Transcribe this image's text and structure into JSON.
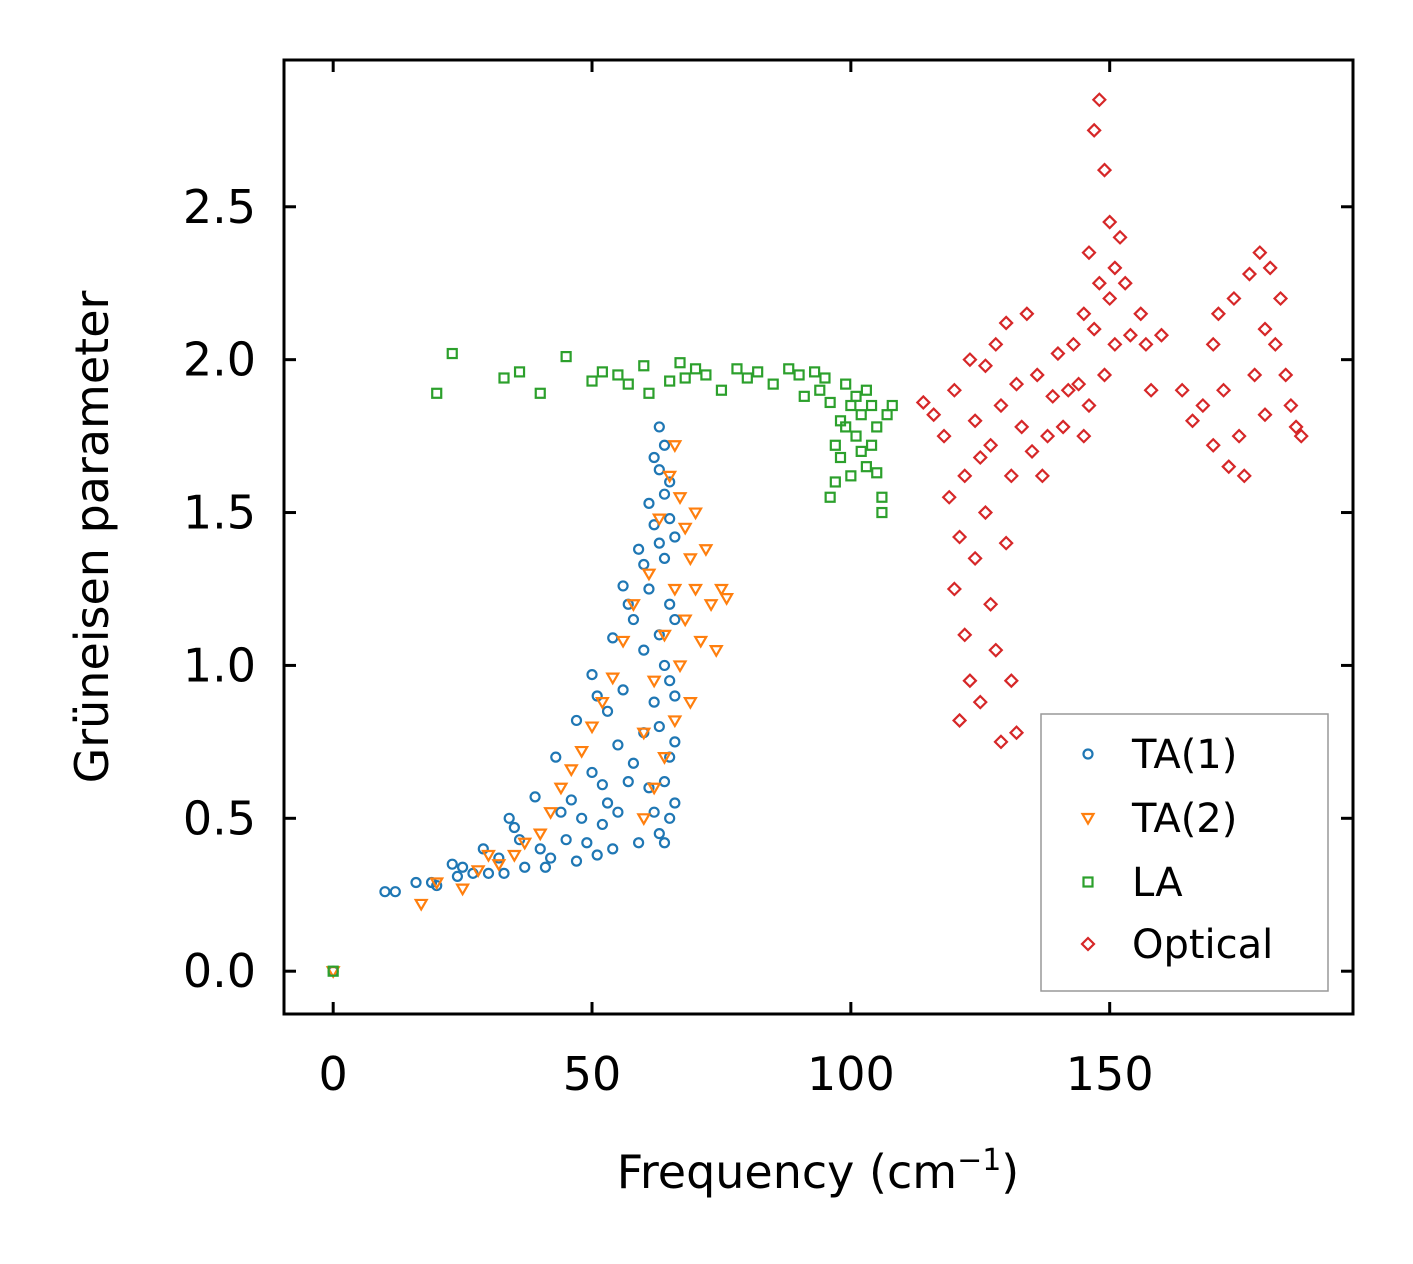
{
  "chart_data": {
    "type": "scatter",
    "title": "",
    "xlabel": "Frequency (cm",
    "xlabel_sup": "−1",
    "xlabel_close": ")",
    "ylabel": "Grüneisen parameter",
    "xlim": [
      -9.5,
      197
    ],
    "ylim": [
      -0.14,
      2.98
    ],
    "xticks": [
      0,
      50,
      100,
      150
    ],
    "xtick_labels": [
      "0",
      "50",
      "100",
      "150"
    ],
    "yticks": [
      0.0,
      0.5,
      1.0,
      1.5,
      2.0,
      2.5
    ],
    "ytick_labels": [
      "0.0",
      "0.5",
      "1.0",
      "1.5",
      "2.0",
      "2.5"
    ],
    "grid": false,
    "legend_position": "lower-right",
    "series": [
      {
        "name": "TA(1)",
        "marker": "circle",
        "color": "#1f77b4",
        "points": [
          [
            0,
            0
          ],
          [
            10,
            0.26
          ],
          [
            12,
            0.26
          ],
          [
            16,
            0.29
          ],
          [
            19,
            0.29
          ],
          [
            20,
            0.28
          ],
          [
            23,
            0.35
          ],
          [
            24,
            0.31
          ],
          [
            25,
            0.34
          ],
          [
            27,
            0.32
          ],
          [
            29,
            0.4
          ],
          [
            30,
            0.32
          ],
          [
            32,
            0.37
          ],
          [
            33,
            0.32
          ],
          [
            34,
            0.5
          ],
          [
            35,
            0.47
          ],
          [
            36,
            0.43
          ],
          [
            37,
            0.34
          ],
          [
            39,
            0.57
          ],
          [
            40,
            0.4
          ],
          [
            41,
            0.34
          ],
          [
            42,
            0.37
          ],
          [
            43,
            0.7
          ],
          [
            44,
            0.52
          ],
          [
            45,
            0.43
          ],
          [
            46,
            0.56
          ],
          [
            47,
            0.82
          ],
          [
            47,
            0.36
          ],
          [
            48,
            0.5
          ],
          [
            49,
            0.42
          ],
          [
            50,
            0.97
          ],
          [
            50,
            0.65
          ],
          [
            51,
            0.9
          ],
          [
            51,
            0.38
          ],
          [
            52,
            0.61
          ],
          [
            52,
            0.48
          ],
          [
            53,
            0.85
          ],
          [
            53,
            0.55
          ],
          [
            54,
            1.09
          ],
          [
            54,
            0.4
          ],
          [
            55,
            0.74
          ],
          [
            55,
            0.52
          ],
          [
            56,
            1.26
          ],
          [
            56,
            0.92
          ],
          [
            57,
            1.2
          ],
          [
            57,
            0.62
          ],
          [
            58,
            1.15
          ],
          [
            58,
            0.68
          ],
          [
            59,
            1.38
          ],
          [
            59,
            0.42
          ],
          [
            60,
            1.33
          ],
          [
            60,
            1.05
          ],
          [
            60,
            0.78
          ],
          [
            61,
            1.53
          ],
          [
            61,
            1.25
          ],
          [
            61,
            0.6
          ],
          [
            62,
            1.68
          ],
          [
            62,
            1.46
          ],
          [
            62,
            0.88
          ],
          [
            62,
            0.52
          ],
          [
            63,
            1.78
          ],
          [
            63,
            1.64
          ],
          [
            63,
            1.4
          ],
          [
            63,
            1.1
          ],
          [
            63,
            0.8
          ],
          [
            63,
            0.45
          ],
          [
            64,
            1.72
          ],
          [
            64,
            1.56
          ],
          [
            64,
            1.35
          ],
          [
            64,
            1.0
          ],
          [
            64,
            0.62
          ],
          [
            64,
            0.42
          ],
          [
            65,
            1.6
          ],
          [
            65,
            1.48
          ],
          [
            65,
            1.2
          ],
          [
            65,
            0.95
          ],
          [
            65,
            0.7
          ],
          [
            65,
            0.5
          ],
          [
            66,
            1.42
          ],
          [
            66,
            1.15
          ],
          [
            66,
            0.9
          ],
          [
            66,
            0.75
          ],
          [
            66,
            0.55
          ]
        ]
      },
      {
        "name": "TA(2)",
        "marker": "triangle-down",
        "color": "#ff7f0e",
        "points": [
          [
            0,
            0
          ],
          [
            17,
            0.22
          ],
          [
            20,
            0.29
          ],
          [
            25,
            0.27
          ],
          [
            28,
            0.33
          ],
          [
            30,
            0.38
          ],
          [
            32,
            0.35
          ],
          [
            35,
            0.38
          ],
          [
            37,
            0.42
          ],
          [
            40,
            0.45
          ],
          [
            42,
            0.52
          ],
          [
            44,
            0.6
          ],
          [
            46,
            0.66
          ],
          [
            48,
            0.72
          ],
          [
            50,
            0.8
          ],
          [
            52,
            0.88
          ],
          [
            54,
            0.96
          ],
          [
            56,
            1.08
          ],
          [
            58,
            1.2
          ],
          [
            60,
            0.5
          ],
          [
            60,
            0.78
          ],
          [
            61,
            1.3
          ],
          [
            62,
            0.6
          ],
          [
            62,
            0.95
          ],
          [
            63,
            1.48
          ],
          [
            64,
            0.7
          ],
          [
            64,
            1.1
          ],
          [
            65,
            1.62
          ],
          [
            66,
            1.72
          ],
          [
            66,
            0.82
          ],
          [
            66,
            1.25
          ],
          [
            67,
            1.55
          ],
          [
            67,
            1.0
          ],
          [
            68,
            1.45
          ],
          [
            68,
            1.15
          ],
          [
            69,
            1.35
          ],
          [
            69,
            0.88
          ],
          [
            70,
            1.25
          ],
          [
            70,
            1.5
          ],
          [
            71,
            1.08
          ],
          [
            72,
            1.38
          ],
          [
            73,
            1.2
          ],
          [
            74,
            1.05
          ],
          [
            75,
            1.25
          ],
          [
            76,
            1.22
          ]
        ]
      },
      {
        "name": "LA",
        "marker": "square",
        "color": "#2ca02c",
        "points": [
          [
            0,
            0
          ],
          [
            20,
            1.89
          ],
          [
            23,
            2.02
          ],
          [
            33,
            1.94
          ],
          [
            36,
            1.96
          ],
          [
            40,
            1.89
          ],
          [
            45,
            2.01
          ],
          [
            50,
            1.93
          ],
          [
            52,
            1.96
          ],
          [
            55,
            1.95
          ],
          [
            57,
            1.92
          ],
          [
            60,
            1.98
          ],
          [
            61,
            1.89
          ],
          [
            65,
            1.93
          ],
          [
            67,
            1.99
          ],
          [
            68,
            1.94
          ],
          [
            70,
            1.97
          ],
          [
            72,
            1.95
          ],
          [
            75,
            1.9
          ],
          [
            78,
            1.97
          ],
          [
            80,
            1.94
          ],
          [
            82,
            1.96
          ],
          [
            85,
            1.92
          ],
          [
            88,
            1.97
          ],
          [
            90,
            1.95
          ],
          [
            91,
            1.88
          ],
          [
            93,
            1.96
          ],
          [
            94,
            1.9
          ],
          [
            95,
            1.94
          ],
          [
            96,
            1.55
          ],
          [
            96,
            1.86
          ],
          [
            97,
            1.6
          ],
          [
            97,
            1.72
          ],
          [
            98,
            1.8
          ],
          [
            98,
            1.68
          ],
          [
            99,
            1.78
          ],
          [
            99,
            1.92
          ],
          [
            100,
            1.62
          ],
          [
            100,
            1.85
          ],
          [
            101,
            1.75
          ],
          [
            101,
            1.88
          ],
          [
            102,
            1.7
          ],
          [
            102,
            1.82
          ],
          [
            103,
            1.65
          ],
          [
            103,
            1.9
          ],
          [
            104,
            1.72
          ],
          [
            104,
            1.85
          ],
          [
            105,
            1.78
          ],
          [
            105,
            1.63
          ],
          [
            106,
            1.55
          ],
          [
            106,
            1.5
          ],
          [
            107,
            1.82
          ],
          [
            108,
            1.85
          ]
        ]
      },
      {
        "name": "Optical",
        "marker": "diamond",
        "color": "#d62728",
        "points": [
          [
            114,
            1.86
          ],
          [
            116,
            1.82
          ],
          [
            118,
            1.75
          ],
          [
            119,
            1.55
          ],
          [
            120,
            1.9
          ],
          [
            120,
            1.25
          ],
          [
            121,
            1.42
          ],
          [
            121,
            0.82
          ],
          [
            122,
            1.1
          ],
          [
            122,
            1.62
          ],
          [
            123,
            2.0
          ],
          [
            123,
            0.95
          ],
          [
            124,
            1.35
          ],
          [
            124,
            1.8
          ],
          [
            125,
            1.68
          ],
          [
            125,
            0.88
          ],
          [
            126,
            1.5
          ],
          [
            126,
            1.98
          ],
          [
            127,
            1.2
          ],
          [
            127,
            1.72
          ],
          [
            128,
            2.05
          ],
          [
            128,
            1.05
          ],
          [
            129,
            1.85
          ],
          [
            129,
            0.75
          ],
          [
            130,
            1.4
          ],
          [
            130,
            2.12
          ],
          [
            131,
            1.62
          ],
          [
            131,
            0.95
          ],
          [
            132,
            1.92
          ],
          [
            132,
            0.78
          ],
          [
            133,
            1.78
          ],
          [
            134,
            2.15
          ],
          [
            135,
            1.7
          ],
          [
            136,
            1.95
          ],
          [
            137,
            1.62
          ],
          [
            138,
            1.75
          ],
          [
            139,
            1.88
          ],
          [
            140,
            2.02
          ],
          [
            141,
            1.78
          ],
          [
            142,
            1.9
          ],
          [
            143,
            2.05
          ],
          [
            144,
            1.92
          ],
          [
            145,
            2.15
          ],
          [
            145,
            1.75
          ],
          [
            146,
            2.35
          ],
          [
            146,
            1.85
          ],
          [
            147,
            2.75
          ],
          [
            147,
            2.1
          ],
          [
            148,
            2.85
          ],
          [
            148,
            2.25
          ],
          [
            149,
            2.62
          ],
          [
            149,
            1.95
          ],
          [
            150,
            2.45
          ],
          [
            150,
            2.2
          ],
          [
            151,
            2.3
          ],
          [
            151,
            2.05
          ],
          [
            152,
            2.4
          ],
          [
            153,
            2.25
          ],
          [
            154,
            2.08
          ],
          [
            156,
            2.15
          ],
          [
            157,
            2.05
          ],
          [
            158,
            1.9
          ],
          [
            160,
            2.08
          ],
          [
            164,
            1.9
          ],
          [
            166,
            1.8
          ],
          [
            168,
            1.85
          ],
          [
            170,
            2.05
          ],
          [
            170,
            1.72
          ],
          [
            171,
            2.15
          ],
          [
            172,
            1.9
          ],
          [
            173,
            1.65
          ],
          [
            174,
            2.2
          ],
          [
            175,
            1.75
          ],
          [
            176,
            1.62
          ],
          [
            177,
            2.28
          ],
          [
            178,
            1.95
          ],
          [
            179,
            2.35
          ],
          [
            180,
            2.1
          ],
          [
            180,
            1.82
          ],
          [
            181,
            2.3
          ],
          [
            182,
            2.05
          ],
          [
            183,
            2.2
          ],
          [
            184,
            1.95
          ],
          [
            185,
            1.85
          ],
          [
            186,
            1.78
          ],
          [
            187,
            1.75
          ]
        ]
      }
    ]
  }
}
